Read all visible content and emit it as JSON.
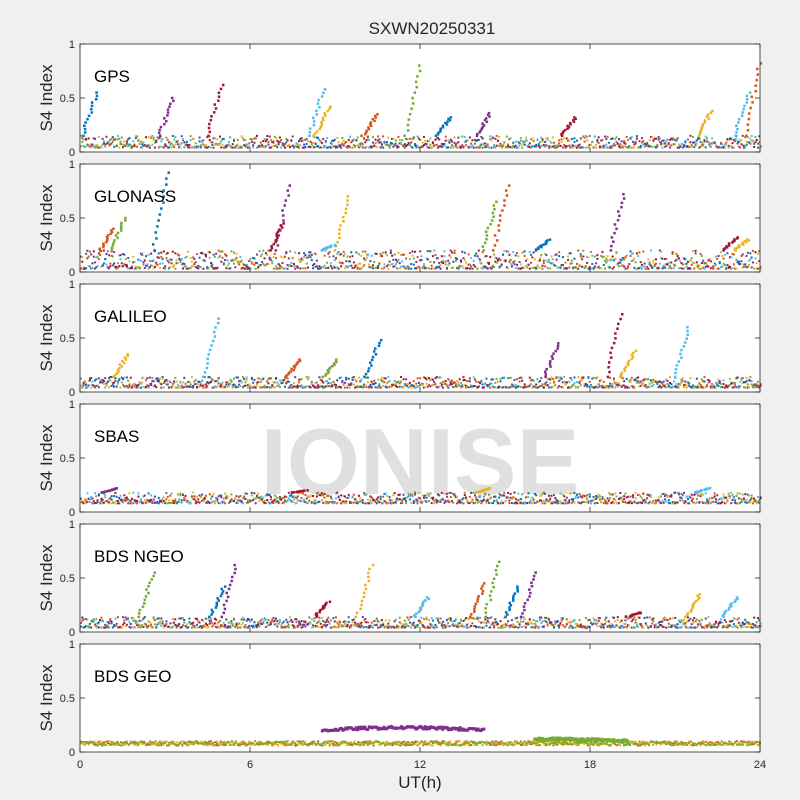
{
  "figure": {
    "title": "SXWN20250331",
    "watermark": "IONISE",
    "xlabel": "UT(h)",
    "ylabel": "S4 Index",
    "x_ticks": [
      "0",
      "6",
      "12",
      "18",
      "24"
    ],
    "y_ticks": [
      "0",
      "0.5",
      "1"
    ]
  },
  "colors": {
    "figure_bg": "#f0f0f0",
    "axes_bg": "#ffffff",
    "watermark": "#e0e0e0",
    "series": [
      "#0072bd",
      "#d95319",
      "#edb120",
      "#7e2f8e",
      "#77ac30",
      "#4dbeee",
      "#a2142f"
    ]
  },
  "chart_data": [
    {
      "type": "scatter",
      "label": "GPS",
      "xlim": [
        0,
        24
      ],
      "ylim": [
        0,
        1
      ],
      "baseline_s4": [
        0.04,
        0.15
      ],
      "peaks": [
        {
          "x": 0.3,
          "y": 0.55
        },
        {
          "x": 3.0,
          "y": 0.5
        },
        {
          "x": 4.7,
          "y": 0.62
        },
        {
          "x": 8.5,
          "y": 0.42
        },
        {
          "x": 8.3,
          "y": 0.58
        },
        {
          "x": 10.2,
          "y": 0.35
        },
        {
          "x": 11.7,
          "y": 0.8
        },
        {
          "x": 12.8,
          "y": 0.32
        },
        {
          "x": 14.2,
          "y": 0.36
        },
        {
          "x": 17.2,
          "y": 0.32
        },
        {
          "x": 22.0,
          "y": 0.38
        },
        {
          "x": 23.3,
          "y": 0.55
        },
        {
          "x": 23.7,
          "y": 0.82
        }
      ]
    },
    {
      "type": "scatter",
      "label": "GLONASS",
      "xlim": [
        0,
        24
      ],
      "ylim": [
        0,
        1
      ],
      "baseline_s4": [
        0.03,
        0.2
      ],
      "peaks": [
        {
          "x": 0.9,
          "y": 0.4
        },
        {
          "x": 1.3,
          "y": 0.5
        },
        {
          "x": 2.8,
          "y": 0.92
        },
        {
          "x": 7.1,
          "y": 0.8
        },
        {
          "x": 6.9,
          "y": 0.45
        },
        {
          "x": 9.2,
          "y": 0.7
        },
        {
          "x": 8.7,
          "y": 0.25
        },
        {
          "x": 14.8,
          "y": 0.8
        },
        {
          "x": 14.4,
          "y": 0.65
        },
        {
          "x": 16.3,
          "y": 0.3
        },
        {
          "x": 18.9,
          "y": 0.72
        },
        {
          "x": 22.9,
          "y": 0.32
        },
        {
          "x": 23.3,
          "y": 0.3
        }
      ]
    },
    {
      "type": "scatter",
      "label": "GALILEO",
      "xlim": [
        0,
        24
      ],
      "ylim": [
        0,
        1
      ],
      "baseline_s4": [
        0.04,
        0.14
      ],
      "peaks": [
        {
          "x": 1.4,
          "y": 0.35
        },
        {
          "x": 4.6,
          "y": 0.68
        },
        {
          "x": 7.5,
          "y": 0.3
        },
        {
          "x": 8.8,
          "y": 0.3
        },
        {
          "x": 10.3,
          "y": 0.48
        },
        {
          "x": 16.6,
          "y": 0.45
        },
        {
          "x": 18.8,
          "y": 0.72
        },
        {
          "x": 19.3,
          "y": 0.38
        },
        {
          "x": 21.2,
          "y": 0.6
        }
      ]
    },
    {
      "type": "scatter",
      "label": "SBAS",
      "xlim": [
        0,
        24
      ],
      "ylim": [
        0,
        1
      ],
      "baseline_s4": [
        0.08,
        0.18
      ],
      "peaks": [
        {
          "x": 1.0,
          "y": 0.22
        },
        {
          "x": 7.7,
          "y": 0.2
        },
        {
          "x": 14.2,
          "y": 0.22
        },
        {
          "x": 21.9,
          "y": 0.22
        }
      ]
    },
    {
      "type": "scatter",
      "label": "BDS NGEO",
      "xlim": [
        0,
        24
      ],
      "ylim": [
        0,
        1
      ],
      "baseline_s4": [
        0.04,
        0.14
      ],
      "peaks": [
        {
          "x": 2.3,
          "y": 0.55
        },
        {
          "x": 4.8,
          "y": 0.42
        },
        {
          "x": 5.2,
          "y": 0.62
        },
        {
          "x": 8.5,
          "y": 0.28
        },
        {
          "x": 10.0,
          "y": 0.62
        },
        {
          "x": 12.0,
          "y": 0.32
        },
        {
          "x": 14.0,
          "y": 0.45
        },
        {
          "x": 14.5,
          "y": 0.65
        },
        {
          "x": 15.2,
          "y": 0.42
        },
        {
          "x": 15.8,
          "y": 0.55
        },
        {
          "x": 19.5,
          "y": 0.18
        },
        {
          "x": 21.6,
          "y": 0.35
        },
        {
          "x": 22.9,
          "y": 0.32
        }
      ]
    },
    {
      "type": "scatter",
      "label": "BDS GEO",
      "xlim": [
        0,
        24
      ],
      "ylim": [
        0,
        1
      ],
      "baseline_s4": [
        0.06,
        0.1
      ],
      "tracks": [
        {
          "x_start": 8.5,
          "x_end": 14.2,
          "y_start": 0.2,
          "y_mid": 0.25,
          "y_end": 0.2,
          "color_index": 3
        },
        {
          "x_start": 16.0,
          "x_end": 19.3,
          "y_start": 0.12,
          "y_mid": 0.12,
          "y_end": 0.1,
          "color_index": 4
        }
      ]
    }
  ]
}
